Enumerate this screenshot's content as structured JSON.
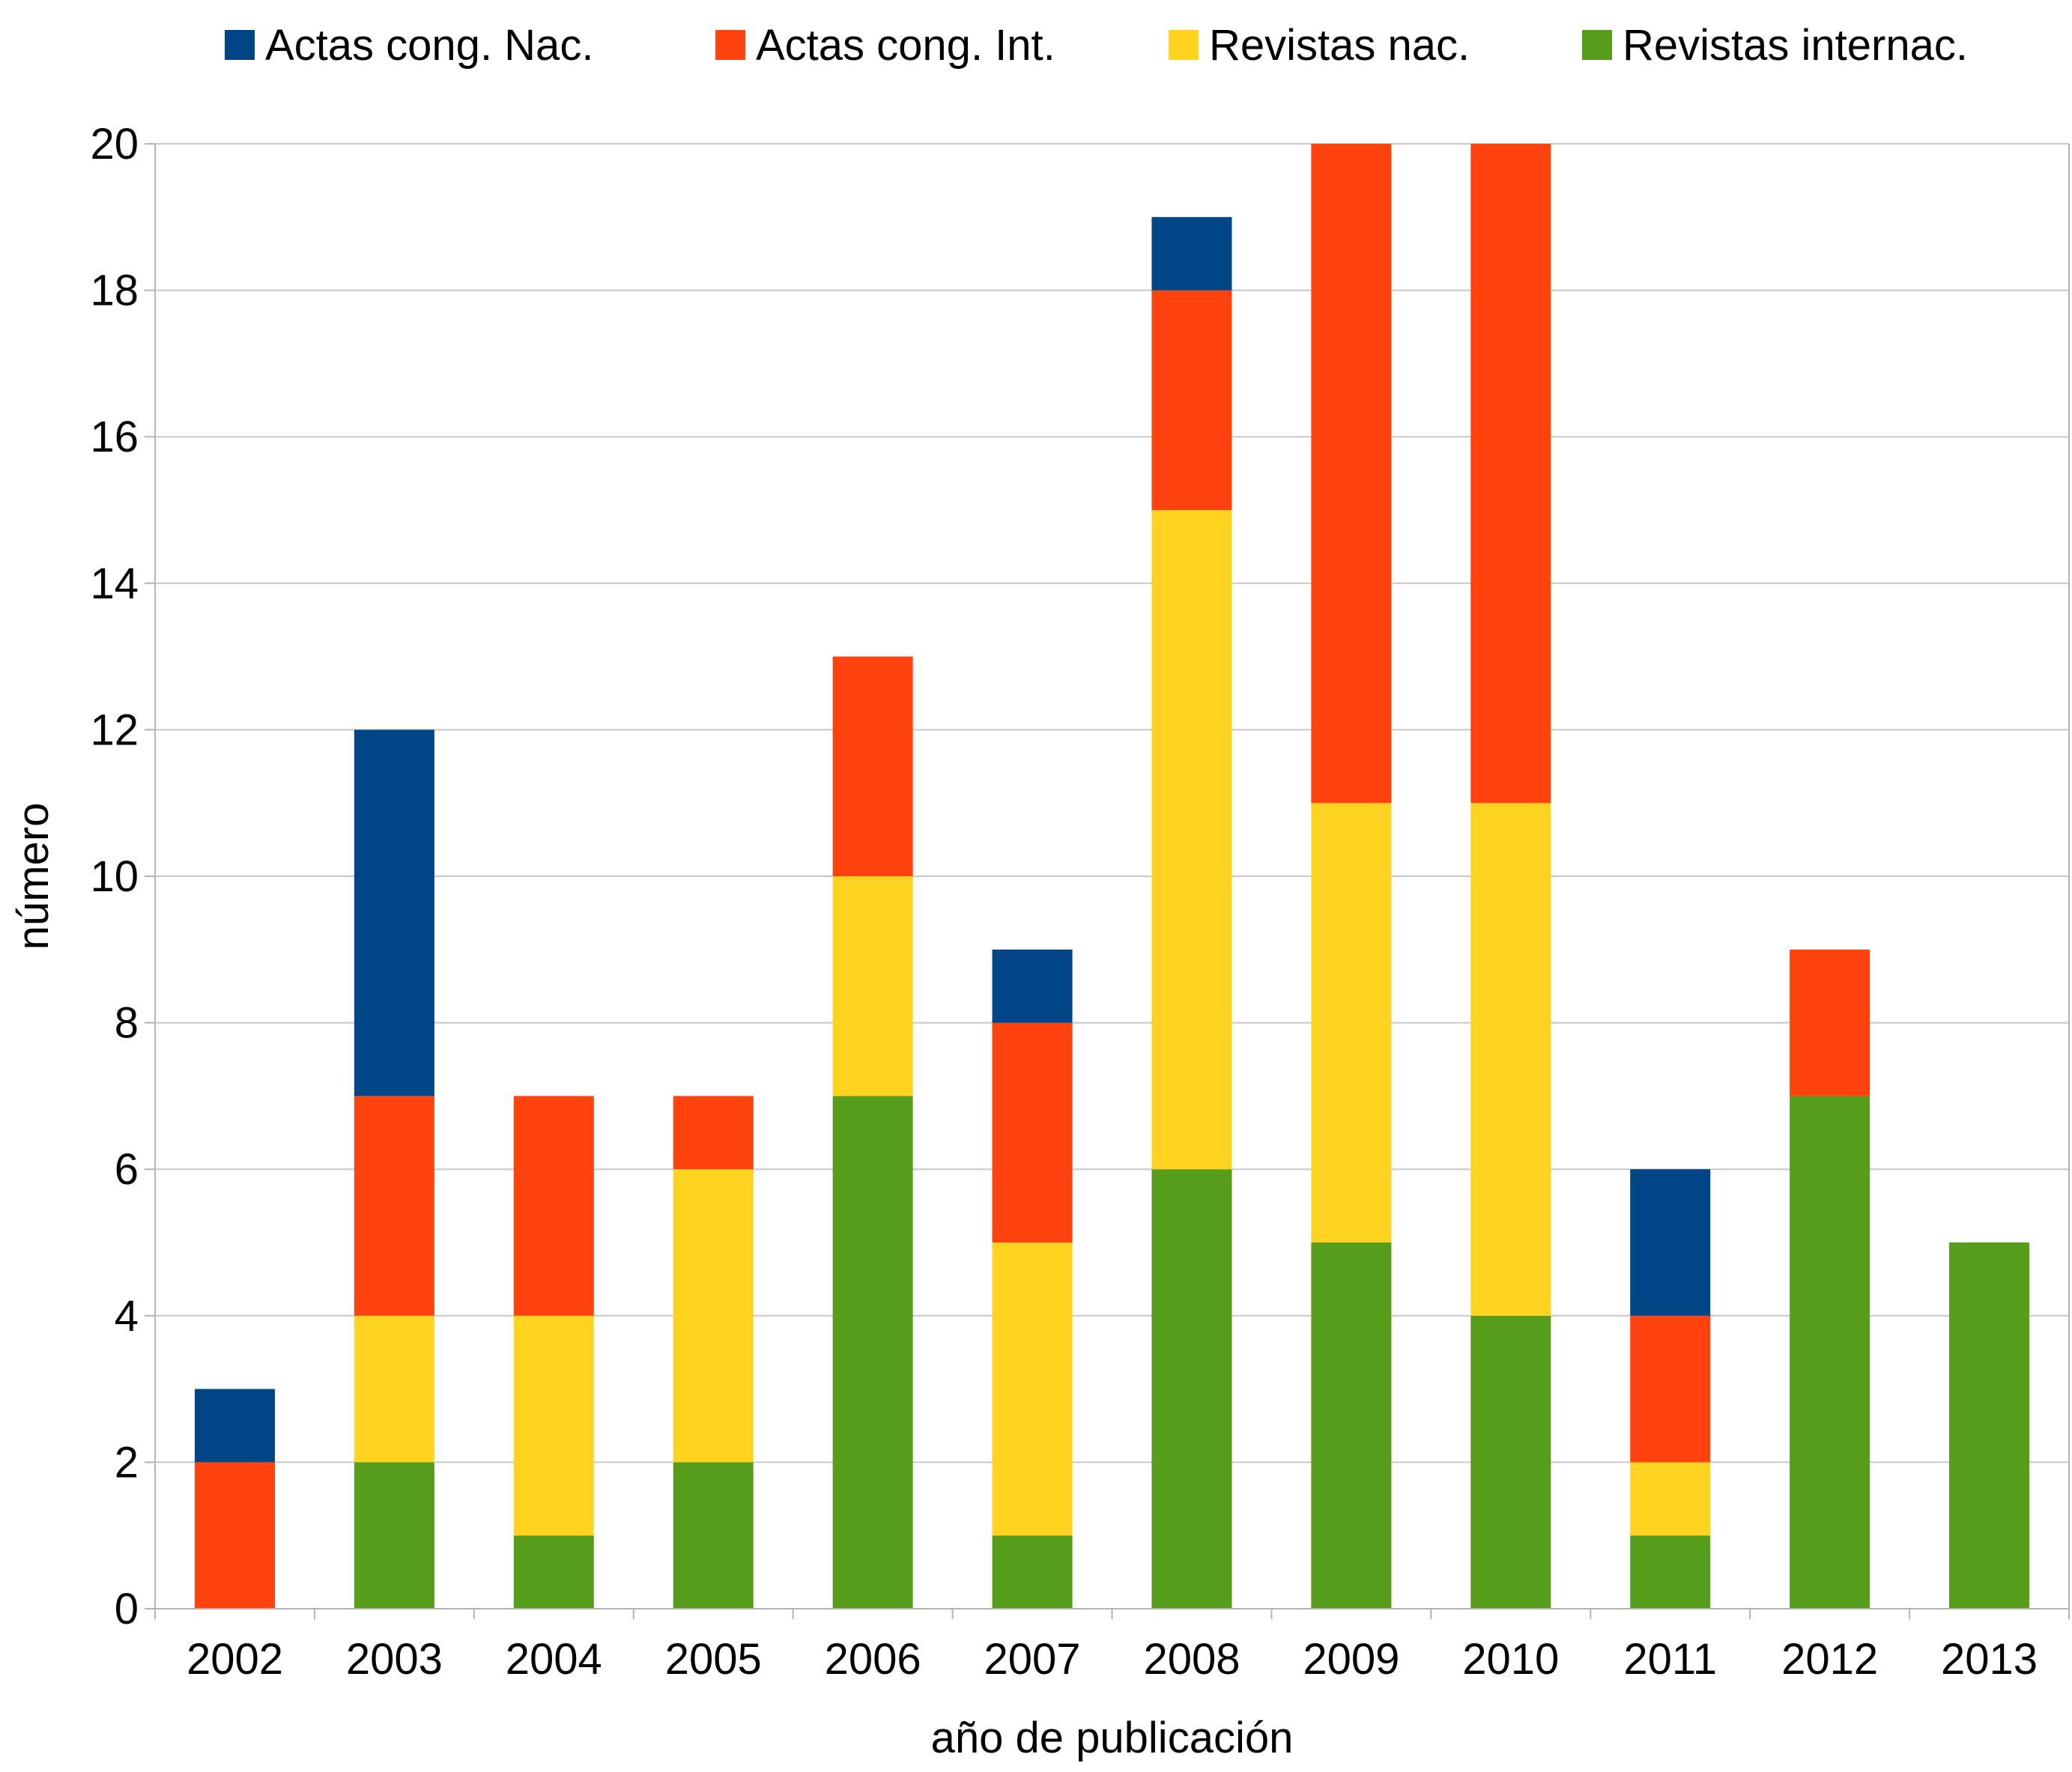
{
  "chart_data": {
    "type": "bar",
    "stacked": true,
    "title": "",
    "xlabel": "año de publicación",
    "ylabel": "número",
    "ylim": [
      0,
      20
    ],
    "ytick_step": 2,
    "grid": true,
    "legend_position": "top",
    "categories": [
      "2002",
      "2003",
      "2004",
      "2005",
      "2006",
      "2007",
      "2008",
      "2009",
      "2010",
      "2011",
      "2012",
      "2013"
    ],
    "series": [
      {
        "name": "Actas cong. Nac.",
        "color": "#004586",
        "values": [
          1,
          5,
          0,
          0,
          0,
          1,
          1,
          0,
          0,
          2,
          0,
          0
        ]
      },
      {
        "name": "Actas cong. Int.",
        "color": "#ff420e",
        "values": [
          2,
          3,
          3,
          1,
          3,
          3,
          3,
          9,
          9,
          2,
          2,
          0
        ]
      },
      {
        "name": "Revistas nac.",
        "color": "#ffd320",
        "values": [
          0,
          2,
          3,
          4,
          3,
          4,
          9,
          6,
          7,
          1,
          0,
          0
        ]
      },
      {
        "name": "Revistas internac.",
        "color": "#579d1c",
        "values": [
          0,
          2,
          1,
          2,
          7,
          1,
          6,
          5,
          4,
          1,
          7,
          5
        ]
      }
    ],
    "stack_order": [
      "Revistas internac.",
      "Revistas nac.",
      "Actas cong. Int.",
      "Actas cong. Nac."
    ]
  }
}
